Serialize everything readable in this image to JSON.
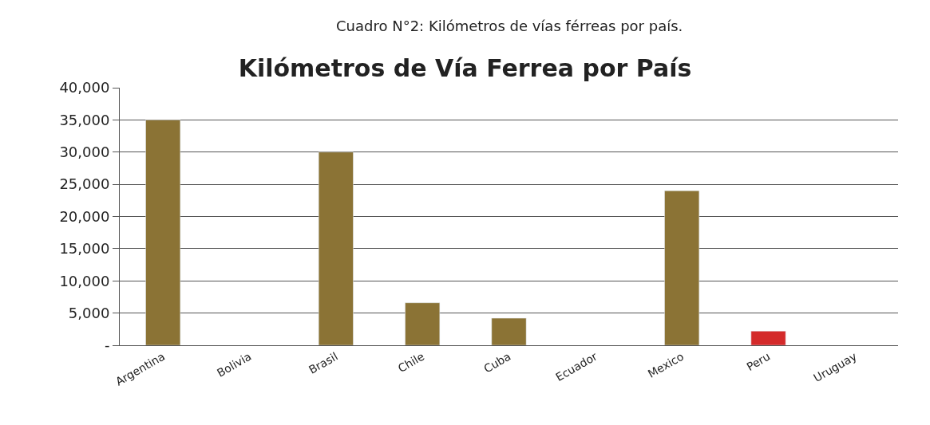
{
  "chart_data": {
    "type": "bar",
    "title": "Kilómetros de Vía Ferrea por País",
    "annotations": [
      "Cuadro N°2: Kilómetros de vías férreas por país."
    ],
    "categories": [
      "Argentina",
      "Bolivia",
      "Brasil",
      "Chile",
      "Cuba",
      "Ecuador",
      "Mexico",
      "Peru",
      "Uruguay"
    ],
    "values": [
      35000,
      null,
      30000,
      6600,
      4200,
      null,
      24000,
      2200,
      null
    ],
    "colors": [
      "#8b7335",
      "#8b7335",
      "#8b7335",
      "#8b7335",
      "#8b7335",
      "#8b7335",
      "#8b7335",
      "#d42a2a",
      "#8b7335"
    ],
    "ylim": [
      0,
      40000
    ],
    "yticks": [
      {
        "value": 0,
        "label": "-"
      },
      {
        "value": 5000,
        "label": "5,000"
      },
      {
        "value": 10000,
        "label": "10,000"
      },
      {
        "value": 15000,
        "label": "15,000"
      },
      {
        "value": 20000,
        "label": "20,000"
      },
      {
        "value": 25000,
        "label": "25,000"
      },
      {
        "value": 30000,
        "label": "30,000"
      },
      {
        "value": 35000,
        "label": "35,000"
      },
      {
        "value": 40000,
        "label": "40,000"
      }
    ],
    "grid": "y"
  }
}
